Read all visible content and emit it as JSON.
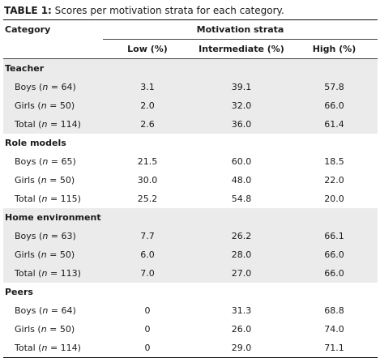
{
  "caption": {
    "label": "TABLE 1:",
    "text": " Scores per motivation strata for each category."
  },
  "header": {
    "category": "Category",
    "strata": "Motivation strata",
    "low": "Low (%)",
    "intermediate": "Intermediate (%)",
    "high": "High (%)"
  },
  "groups": [
    {
      "name": "Teacher",
      "rows": [
        {
          "label": "Boys (",
          "n": "n",
          "count": " = 64)",
          "low": "3.1",
          "intermediate": "39.1",
          "high": "57.8"
        },
        {
          "label": "Girls (",
          "n": "n",
          "count": " = 50)",
          "low": "2.0",
          "intermediate": "32.0",
          "high": "66.0"
        },
        {
          "label": "Total (",
          "n": "n",
          "count": " = 114)",
          "low": "2.6",
          "intermediate": "36.0",
          "high": "61.4"
        }
      ]
    },
    {
      "name": "Role models",
      "rows": [
        {
          "label": "Boys (",
          "n": "n",
          "count": " = 65)",
          "low": "21.5",
          "intermediate": "60.0",
          "high": "18.5"
        },
        {
          "label": "Girls (",
          "n": "n",
          "count": " = 50)",
          "low": "30.0",
          "intermediate": "48.0",
          "high": "22.0"
        },
        {
          "label": "Total (",
          "n": "n",
          "count": " = 115)",
          "low": "25.2",
          "intermediate": "54.8",
          "high": "20.0"
        }
      ]
    },
    {
      "name": "Home environment",
      "rows": [
        {
          "label": "Boys (",
          "n": "n",
          "count": " = 63)",
          "low": "7.7",
          "intermediate": "26.2",
          "high": "66.1"
        },
        {
          "label": "Girls (",
          "n": "n",
          "count": " = 50)",
          "low": "6.0",
          "intermediate": "28.0",
          "high": "66.0"
        },
        {
          "label": "Total (",
          "n": "n",
          "count": " = 113)",
          "low": "7.0",
          "intermediate": "27.0",
          "high": "66.0"
        }
      ]
    },
    {
      "name": "Peers",
      "rows": [
        {
          "label": "Boys (",
          "n": "n",
          "count": " = 64)",
          "low": "0",
          "intermediate": "31.3",
          "high": "68.8"
        },
        {
          "label": "Girls (",
          "n": "n",
          "count": " = 50)",
          "low": "0",
          "intermediate": "26.0",
          "high": "74.0"
        },
        {
          "label": "Total (",
          "n": "n",
          "count": " = 114)",
          "low": "0",
          "intermediate": "29.0",
          "high": "71.1"
        }
      ]
    }
  ]
}
